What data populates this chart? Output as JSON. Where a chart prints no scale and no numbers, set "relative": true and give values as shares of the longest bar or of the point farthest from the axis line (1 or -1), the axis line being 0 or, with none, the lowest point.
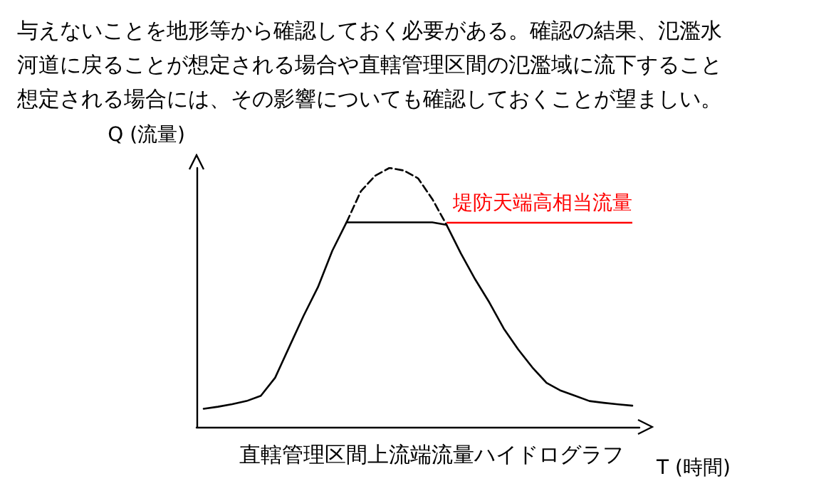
{
  "chart_data": {
    "type": "line",
    "relative": true,
    "ylabel": "Q (流量)",
    "xlabel": "T (時間)",
    "marker": "none",
    "annotations": [
      "与えないことを地形等から確認しておく必要がある。確認の結果、氾濫水",
      "河道に戻ることが想定される場合や直轄管理区間の氾濫域に流下すること",
      "想定される場合には、その影響についても確認しておくことが望ましい。",
      "直轄管理区間上流端流量ハイドログラフ"
    ],
    "categories": [
      null,
      null,
      null,
      null,
      null,
      null,
      null,
      null,
      null,
      null,
      null,
      null,
      null,
      null,
      null,
      null,
      null,
      null,
      null,
      null,
      null,
      null,
      null,
      null,
      null,
      null,
      null,
      null,
      null,
      null,
      null
    ],
    "series": [
      {
        "color": "#000000",
        "line_style": "solid",
        "values": [
          0.07,
          0.078,
          0.088,
          0.1,
          0.12,
          0.19,
          0.31,
          0.43,
          0.54,
          0.68,
          0.79,
          0.79,
          0.79,
          0.79,
          0.79,
          0.79,
          0.79,
          0.78,
          0.67,
          0.57,
          0.48,
          0.38,
          0.3,
          0.23,
          0.17,
          0.14,
          0.12,
          0.1,
          0.093,
          0.087,
          0.082
        ]
      },
      {
        "color": "#000000",
        "line_style": "dashed",
        "values": [
          null,
          null,
          null,
          null,
          null,
          null,
          null,
          null,
          null,
          null,
          0.79,
          0.91,
          0.97,
          1.0,
          0.99,
          0.96,
          0.88,
          0.78,
          null,
          null,
          null,
          null,
          null,
          null,
          null,
          null,
          null,
          null,
          null,
          null,
          null
        ]
      }
    ],
    "ref_lines": [
      {
        "axis": "y",
        "value": 0.79,
        "label": "堤防天端高相当流量",
        "color": "#ff0000"
      }
    ]
  }
}
